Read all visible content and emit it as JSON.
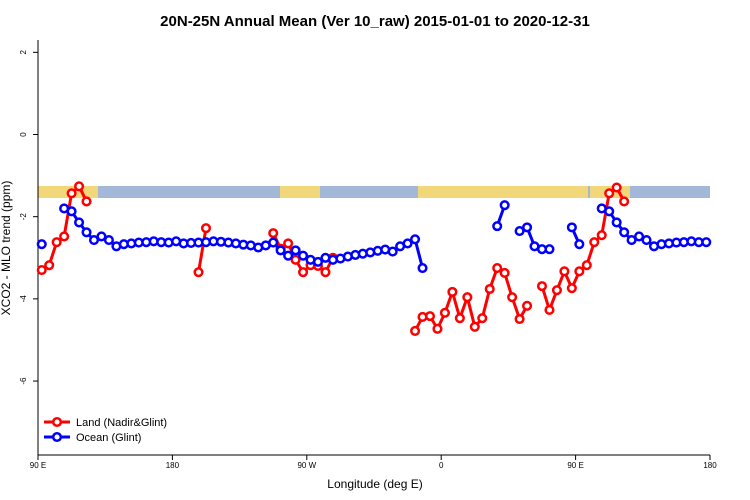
{
  "chart_data": {
    "type": "line",
    "title": "20N-25N Annual Mean (Ver 10_raw)   2015-01-01 to 2020-12-31",
    "x_label": "Longitude (deg E)",
    "y_label": "XCO2 - MLO trend (ppm)",
    "xlim": [
      90,
      540
    ],
    "xticks": [
      {
        "value": 90,
        "label": "90 E"
      },
      {
        "value": 180,
        "label": "180"
      },
      {
        "value": 270,
        "label": "90 W"
      },
      {
        "value": 360,
        "label": "0"
      },
      {
        "value": 450,
        "label": "90 E"
      },
      {
        "value": 540,
        "label": "180"
      }
    ],
    "ylim": [
      -7.8,
      2.3
    ],
    "yticks": [
      -6,
      -4,
      -2,
      0,
      2
    ],
    "legend": "bottom-left",
    "series": [
      {
        "name": "Land (Nadir&Glint)",
        "color": "#ff0000",
        "x": [
          92.5,
          97.5,
          102.5,
          107.5,
          112.5,
          117.5,
          122.5,
          127.5,
          197.5,
          202.5,
          207.5,
          247.5,
          252.5,
          257.5,
          262.5,
          267.5,
          272.5,
          277.5,
          282.5,
          287.5,
          292.5,
          342.5,
          347.5,
          352.5,
          357.5,
          362.5,
          367.5,
          372.5,
          377.5,
          382.5,
          387.5,
          392.5,
          397.5,
          402.5,
          407.5,
          412.5,
          417.5,
          422.5,
          427.5,
          432.5,
          437.5,
          442.5,
          447.5,
          452.5,
          457.5,
          462.5,
          467.5,
          472.5,
          477.5,
          482.5
        ],
        "values": [
          -3.3,
          -3.18,
          -2.62,
          -2.48,
          -1.43,
          -1.26,
          -1.63,
          null,
          -3.35,
          -2.28,
          null,
          -2.4,
          -2.78,
          -2.65,
          -3.05,
          -3.35,
          -3.18,
          -3.2,
          -3.35,
          -3.0,
          null,
          -4.78,
          -4.44,
          -4.42,
          -4.73,
          -4.34,
          -3.83,
          -4.47,
          -3.96,
          -4.68,
          -4.47,
          -3.76,
          -3.25,
          -3.37,
          -3.96,
          -4.49,
          -4.17,
          null,
          -3.69,
          -4.27,
          -3.79,
          -3.33,
          -3.74,
          -3.33,
          -3.18,
          -2.62,
          -2.45,
          -1.43,
          -1.29,
          -1.63
        ]
      },
      {
        "name": "Ocean (Glint)",
        "color": "#0000ff",
        "x": [
          92.5,
          97.5,
          107.5,
          112.5,
          117.5,
          122.5,
          127.5,
          132.5,
          137.5,
          142.5,
          147.5,
          152.5,
          157.5,
          162.5,
          167.5,
          172.5,
          177.5,
          182.5,
          187.5,
          192.5,
          197.5,
          202.5,
          207.5,
          212.5,
          217.5,
          222.5,
          227.5,
          232.5,
          237.5,
          242.5,
          247.5,
          252.5,
          257.5,
          262.5,
          267.5,
          272.5,
          277.5,
          282.5,
          287.5,
          292.5,
          297.5,
          302.5,
          307.5,
          312.5,
          317.5,
          322.5,
          327.5,
          332.5,
          337.5,
          342.5,
          347.5,
          352.5,
          397.5,
          402.5,
          407.5,
          412.5,
          417.5,
          422.5,
          427.5,
          432.5,
          437.5,
          447.5,
          452.5,
          457.5,
          467.5,
          472.5,
          477.5,
          482.5,
          487.5,
          492.5,
          497.5,
          502.5,
          507.5,
          512.5,
          517.5,
          522.5,
          527.5,
          532.5,
          537.5
        ],
        "values": [
          -2.67,
          null,
          -1.8,
          -1.87,
          -2.14,
          -2.38,
          -2.57,
          -2.48,
          -2.57,
          -2.72,
          -2.67,
          -2.65,
          -2.63,
          -2.62,
          -2.6,
          -2.62,
          -2.63,
          -2.6,
          -2.65,
          -2.64,
          -2.63,
          -2.62,
          -2.6,
          -2.61,
          -2.63,
          -2.65,
          -2.68,
          -2.7,
          -2.75,
          -2.7,
          -2.63,
          -2.82,
          -2.95,
          -2.82,
          -2.95,
          -3.05,
          -3.1,
          -3.0,
          -3.05,
          -3.02,
          -2.97,
          -2.93,
          -2.9,
          -2.87,
          -2.83,
          -2.8,
          -2.85,
          -2.72,
          -2.65,
          -2.55,
          -3.25,
          null,
          -2.23,
          -1.72,
          null,
          -2.35,
          -2.26,
          -2.72,
          -2.79,
          -2.79,
          null,
          -2.26,
          -2.67,
          null,
          -1.8,
          -1.87,
          -2.14,
          -2.38,
          -2.57,
          -2.48,
          -2.57,
          -2.72,
          -2.67,
          -2.65,
          -2.63,
          -2.62,
          -2.6,
          -2.62,
          -2.62
        ]
      }
    ]
  }
}
